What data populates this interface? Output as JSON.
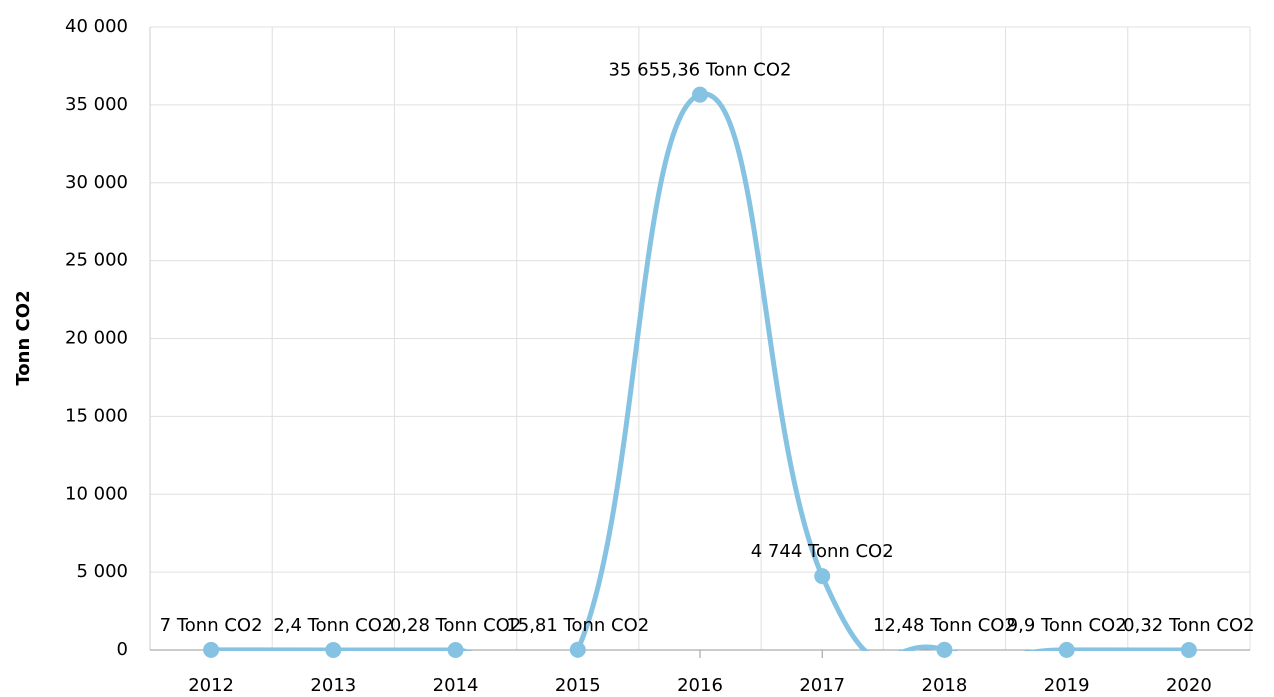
{
  "chart_data": {
    "type": "line",
    "y_axis_label": "Tonn CO2",
    "categories": [
      "2012",
      "2013",
      "2014",
      "2015",
      "2016",
      "2017",
      "2018",
      "2019",
      "2020"
    ],
    "series": [
      {
        "name": "Tonn CO2",
        "color": "#86c3e2",
        "values": [
          7,
          2.4,
          0.28,
          15.81,
          35655.36,
          4744,
          12.48,
          9.9,
          0.32
        ],
        "value_labels": [
          "7 Tonn CO2",
          "2,4 Tonn CO2",
          "0,28 Tonn CO2",
          "15,81 Tonn CO2",
          "35 655,36 Tonn CO2",
          "4 744 Tonn CO2",
          "12,48 Tonn CO2",
          "9,9 Tonn CO2",
          "0,32 Tonn CO2"
        ]
      }
    ],
    "ylim": [
      0,
      40000
    ],
    "yticks": [
      0,
      {
        "value": 5000,
        "label": "5 000"
      },
      {
        "value": 10000,
        "label": "10 000"
      },
      {
        "value": 15000,
        "label": "15 000"
      },
      {
        "value": 20000,
        "label": "20 000"
      },
      {
        "value": 25000,
        "label": "25 000"
      },
      {
        "value": 30000,
        "label": "30 000"
      },
      {
        "value": 35000,
        "label": "35 000"
      },
      {
        "value": 40000,
        "label": "40 000"
      }
    ],
    "grid": true
  }
}
